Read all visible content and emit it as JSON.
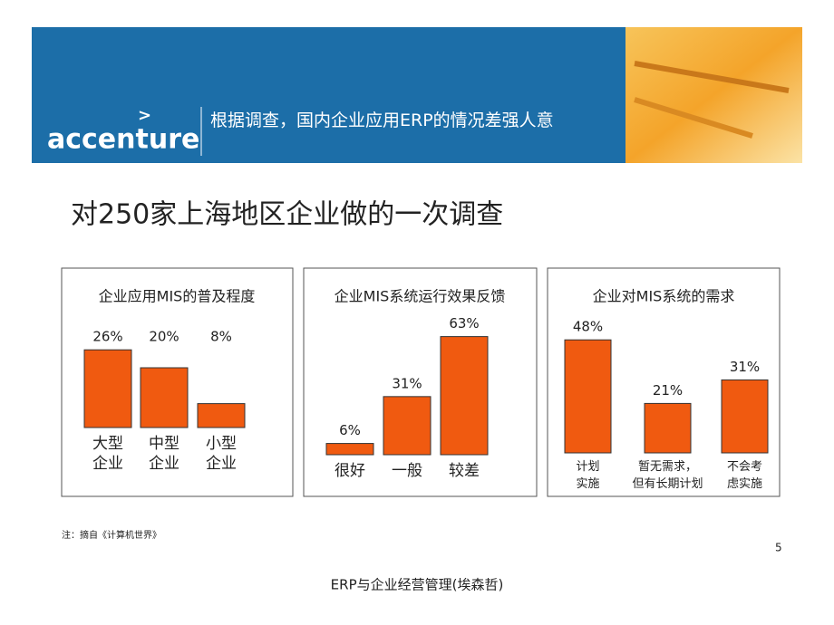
{
  "header": {
    "logo": "accenture",
    "title": "根据调查，国内企业应用ERP的情况差强人意"
  },
  "slide_title": "对250家上海地区企业做的一次调查",
  "chart_data": [
    {
      "type": "bar",
      "title": "企业应用MIS的普及程度",
      "categories": [
        "大型\n企业",
        "中型\n企业",
        "小型\n企业"
      ],
      "values": [
        26,
        20,
        8
      ],
      "value_labels": [
        "26%",
        "20%",
        "8%"
      ],
      "color": "#f05a10"
    },
    {
      "type": "bar",
      "title": "企业MIS系统运行效果反馈",
      "categories": [
        "很好",
        "一般",
        "较差"
      ],
      "values": [
        6,
        31,
        63
      ],
      "value_labels": [
        "6%",
        "31%",
        "63%"
      ],
      "color": "#f05a10"
    },
    {
      "type": "bar",
      "title": "企业对MIS系统的需求",
      "categories": [
        "计划\n实施",
        "暂无需求，\n但有长期计划",
        "不会考\n虑实施"
      ],
      "values": [
        48,
        21,
        31
      ],
      "value_labels": [
        "48%",
        "21%",
        "31%"
      ],
      "color": "#f05a10"
    }
  ],
  "note": "注：摘自《计算机世界》",
  "page_number": "5",
  "footer": "ERP与企业经营管理(埃森哲)"
}
